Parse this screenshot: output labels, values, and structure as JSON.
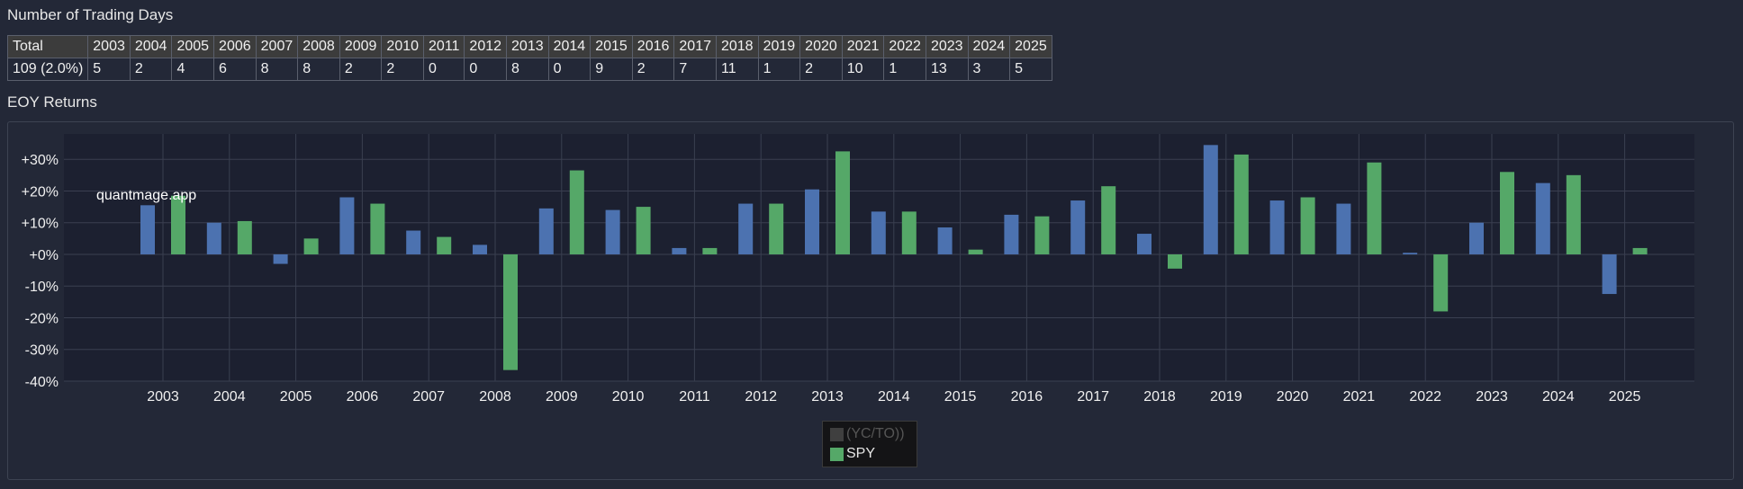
{
  "sections": {
    "trading_days_title": "Number of Trading Days",
    "eoy_title": "EOY Returns"
  },
  "trading_days": {
    "headers": [
      "Total",
      "2003",
      "2004",
      "2005",
      "2006",
      "2007",
      "2008",
      "2009",
      "2010",
      "2011",
      "2012",
      "2013",
      "2014",
      "2015",
      "2016",
      "2017",
      "2018",
      "2019",
      "2020",
      "2021",
      "2022",
      "2023",
      "2024",
      "2025"
    ],
    "values": [
      "109 (2.0%)",
      "5",
      "2",
      "4",
      "6",
      "8",
      "8",
      "2",
      "2",
      "0",
      "0",
      "8",
      "0",
      "9",
      "2",
      "7",
      "11",
      "1",
      "2",
      "10",
      "1",
      "13",
      "3",
      "5"
    ]
  },
  "watermark": "quantmage.app",
  "colors": {
    "strategy": "#4c72b0",
    "spy": "#55a868",
    "dim": "#3f3f3f"
  },
  "legend": [
    {
      "name": "(YC/TO))",
      "color": "#3f3f3f",
      "dim": true
    },
    {
      "name": "SPY",
      "color": "#55a868",
      "dim": false
    }
  ],
  "chart_data": {
    "type": "bar",
    "title": "EOY Returns",
    "categories": [
      "2003",
      "2004",
      "2005",
      "2006",
      "2007",
      "2008",
      "2009",
      "2010",
      "2011",
      "2012",
      "2013",
      "2014",
      "2015",
      "2016",
      "2017",
      "2018",
      "2019",
      "2020",
      "2021",
      "2022",
      "2023",
      "2024",
      "2025"
    ],
    "series": [
      {
        "name": "(YC/TO))",
        "values": [
          15.5,
          10,
          -3,
          18,
          7.5,
          3,
          14.5,
          14,
          2,
          16,
          20.5,
          13.5,
          8.5,
          12.5,
          17,
          6.5,
          34.5,
          17,
          16,
          0.5,
          10,
          22.5,
          -12.5
        ]
      },
      {
        "name": "SPY",
        "values": [
          18.5,
          10.5,
          5,
          16,
          5.5,
          -36.5,
          26.5,
          15,
          2,
          16,
          32.5,
          13.5,
          1.5,
          12,
          21.5,
          -4.5,
          31.5,
          18,
          29,
          -18,
          26,
          25,
          2
        ]
      }
    ],
    "ylim": [
      -40,
      40
    ],
    "yticks": [
      -40,
      -30,
      -20,
      -10,
      0,
      10,
      20,
      30
    ],
    "ytick_labels": [
      "-40%",
      "-30%",
      "-20%",
      "-10%",
      "+0%",
      "+10%",
      "+20%",
      "+30%"
    ],
    "xlabel": "",
    "ylabel": "",
    "grid": true,
    "legend_position": "bottom-center"
  }
}
